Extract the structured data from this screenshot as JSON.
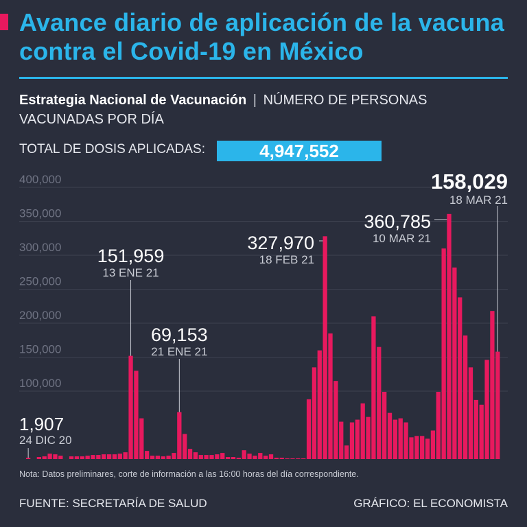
{
  "header": {
    "title": "Avance diario de aplicación de la vacuna contra el Covid-19 en México",
    "subtitle_strong": "Estrategia Nacional de Vacunación",
    "subtitle_sep": "|",
    "subtitle_rest": "NÚMERO DE PERSONAS VACUNADAS POR DÍA",
    "total_label": "TOTAL DE DOSIS APLICADAS:",
    "total_value": "4,947,552"
  },
  "colors": {
    "background": "#2a2e3c",
    "title": "#2bb5ea",
    "bar": "#e8195e",
    "accent": "#e8195e",
    "grid": "#3d4150",
    "tick": "#6f7383"
  },
  "chart_data": {
    "type": "bar",
    "title": "NÚMERO DE PERSONAS VACUNADAS POR DÍA",
    "xlabel": "",
    "ylabel": "",
    "ylim": [
      0,
      400000
    ],
    "yticks": [
      100000,
      150000,
      200000,
      250000,
      300000,
      350000,
      400000
    ],
    "ytick_labels": [
      "100,000",
      "150,000",
      "200,000",
      "250,000",
      "300,000",
      "350,000",
      "400,000"
    ],
    "grid": true,
    "series": [
      {
        "name": "Personas vacunadas por día",
        "values": [
          1907,
          0,
          3000,
          4000,
          8000,
          7000,
          5000,
          0,
          4000,
          4000,
          4000,
          5000,
          6000,
          6000,
          7000,
          7000,
          7000,
          8000,
          10000,
          151959,
          130000,
          60000,
          12000,
          5000,
          5000,
          4000,
          5000,
          9000,
          69153,
          37000,
          15000,
          10000,
          6000,
          6000,
          6000,
          7000,
          9000,
          3000,
          3000,
          2000,
          13000,
          8000,
          5000,
          9000,
          5000,
          7000,
          2000,
          2000,
          1000,
          1000,
          1000,
          1000,
          88000,
          135000,
          160000,
          327970,
          185000,
          115000,
          55000,
          20000,
          54000,
          58000,
          82000,
          62000,
          210000,
          165000,
          99000,
          68000,
          58000,
          60000,
          54000,
          32000,
          34000,
          34000,
          30000,
          42000,
          99000,
          310000,
          360785,
          282000,
          238000,
          182000,
          135000,
          87000,
          80000,
          146000,
          218000,
          158029
        ]
      }
    ],
    "annotations": [
      {
        "index": 0,
        "value_text": "1,907",
        "date": "24 DIC 20"
      },
      {
        "index": 19,
        "value_text": "151,959",
        "date": "13 ENE 21"
      },
      {
        "index": 28,
        "value_text": "69,153",
        "date": "21 ENE 21"
      },
      {
        "index": 55,
        "value_text": "327,970",
        "date": "18 FEB 21"
      },
      {
        "index": 78,
        "value_text": "360,785",
        "date": "10 MAR 21"
      },
      {
        "index": 87,
        "value_text": "158,029",
        "date": "18 MAR 21"
      }
    ]
  },
  "footer": {
    "note": "Nota: Datos preliminares, corte de información a las 16:00 horas del día correspondiente.",
    "source": "FUENTE: SECRETARÍA DE SALUD",
    "credit": "GRÁFICO: EL ECONOMISTA"
  }
}
